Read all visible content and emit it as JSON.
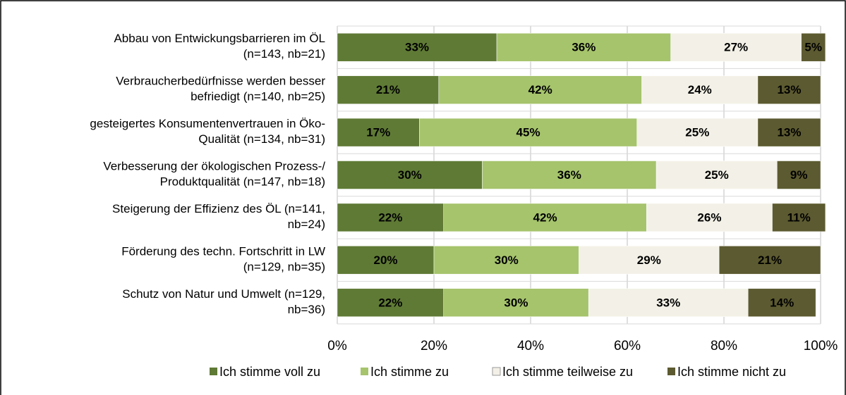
{
  "chart_data": {
    "type": "stacked-barh",
    "categories": [
      [
        "Abbau von Entwickungsbarrieren im ÖL",
        "(n=143, nb=21)"
      ],
      [
        "Verbraucherbedürfnisse werden besser",
        "befriedigt (n=140, nb=25)"
      ],
      [
        "gesteigertes Konsumentenvertrauen in Öko-",
        "Qualität  (n=134, nb=31)"
      ],
      [
        "Verbesserung der ökologischen Prozess-/",
        "Produktqualität  (n=147, nb=18)"
      ],
      [
        "Steigerung der Effizienz des ÖL  (n=141,",
        "nb=24)"
      ],
      [
        "Förderung des techn. Fortschritt in LW",
        "(n=129, nb=35)"
      ],
      [
        "Schutz von Natur und Umwelt  (n=129,",
        "nb=36)"
      ]
    ],
    "series": [
      {
        "name": "Ich stimme voll zu",
        "color": "#5f7a35",
        "label_color": "#ffffff",
        "values": [
          33,
          21,
          17,
          30,
          22,
          20,
          22
        ],
        "value_labels": [
          "33%",
          "21%",
          "17%",
          "30%",
          "22%",
          "20%",
          "22%"
        ]
      },
      {
        "name": "Ich stimme zu",
        "color": "#a6c46c",
        "label_color": "#000000",
        "values": [
          36,
          42,
          45,
          36,
          42,
          30,
          30
        ],
        "value_labels": [
          "36%",
          "42%",
          "45%",
          "36%",
          "42%",
          "30%",
          "30%"
        ]
      },
      {
        "name": "Ich stimme teilweise zu",
        "color": "#f3f1e7",
        "label_color": "#000000",
        "values": [
          27,
          24,
          25,
          25,
          26,
          29,
          33
        ],
        "value_labels": [
          "27%",
          "24%",
          "25%",
          "25%",
          "26%",
          "29%",
          "33%"
        ]
      },
      {
        "name": "Ich stimme nicht  zu",
        "color": "#5c5a30",
        "label_color": "#ffffff",
        "values": [
          5,
          13,
          13,
          9,
          11,
          21,
          14
        ],
        "value_labels": [
          "5%",
          "13%",
          "13%",
          "9%",
          "11%",
          "21%",
          "14%"
        ]
      }
    ],
    "xlim": [
      0,
      100
    ],
    "xticks": [
      {
        "value": 0,
        "label": "0%"
      },
      {
        "value": 20,
        "label": "20%"
      },
      {
        "value": 40,
        "label": "40%"
      },
      {
        "value": 60,
        "label": "60%"
      },
      {
        "value": 80,
        "label": "80%"
      },
      {
        "value": 100,
        "label": "100%"
      }
    ],
    "grid": true,
    "legend": "bottom"
  }
}
